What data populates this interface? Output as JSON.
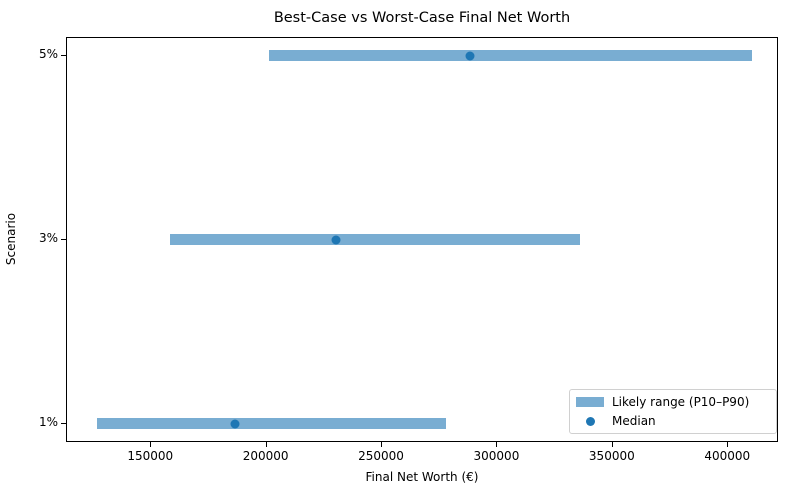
{
  "chart_data": {
    "type": "range-dot",
    "title": "Best-Case vs Worst-Case Final Net Worth",
    "xlabel": "Final Net Worth (€)",
    "ylabel": "Scenario",
    "categories": [
      "1%",
      "3%",
      "5%"
    ],
    "series": [
      {
        "name": "Likely range (P10–P90)",
        "type": "range",
        "low": [
          126500,
          158300,
          200900
        ],
        "high": [
          277800,
          335700,
          410400
        ]
      },
      {
        "name": "Median",
        "type": "scatter",
        "values": [
          186500,
          230000,
          288300
        ]
      }
    ],
    "xticks": [
      "150000",
      "200000",
      "250000",
      "300000",
      "350000",
      "400000"
    ],
    "xtick_values": [
      150000,
      200000,
      250000,
      300000,
      350000,
      400000
    ],
    "xlim": [
      113500,
      422000
    ],
    "legend_position": "lower right",
    "grid": false,
    "colors": {
      "range": "#1f77b4",
      "range_alpha": 0.6,
      "median": "#1f77b4"
    }
  },
  "legend": {
    "items": [
      {
        "label": "Likely range (P10–P90)"
      },
      {
        "label": "Median"
      }
    ]
  }
}
